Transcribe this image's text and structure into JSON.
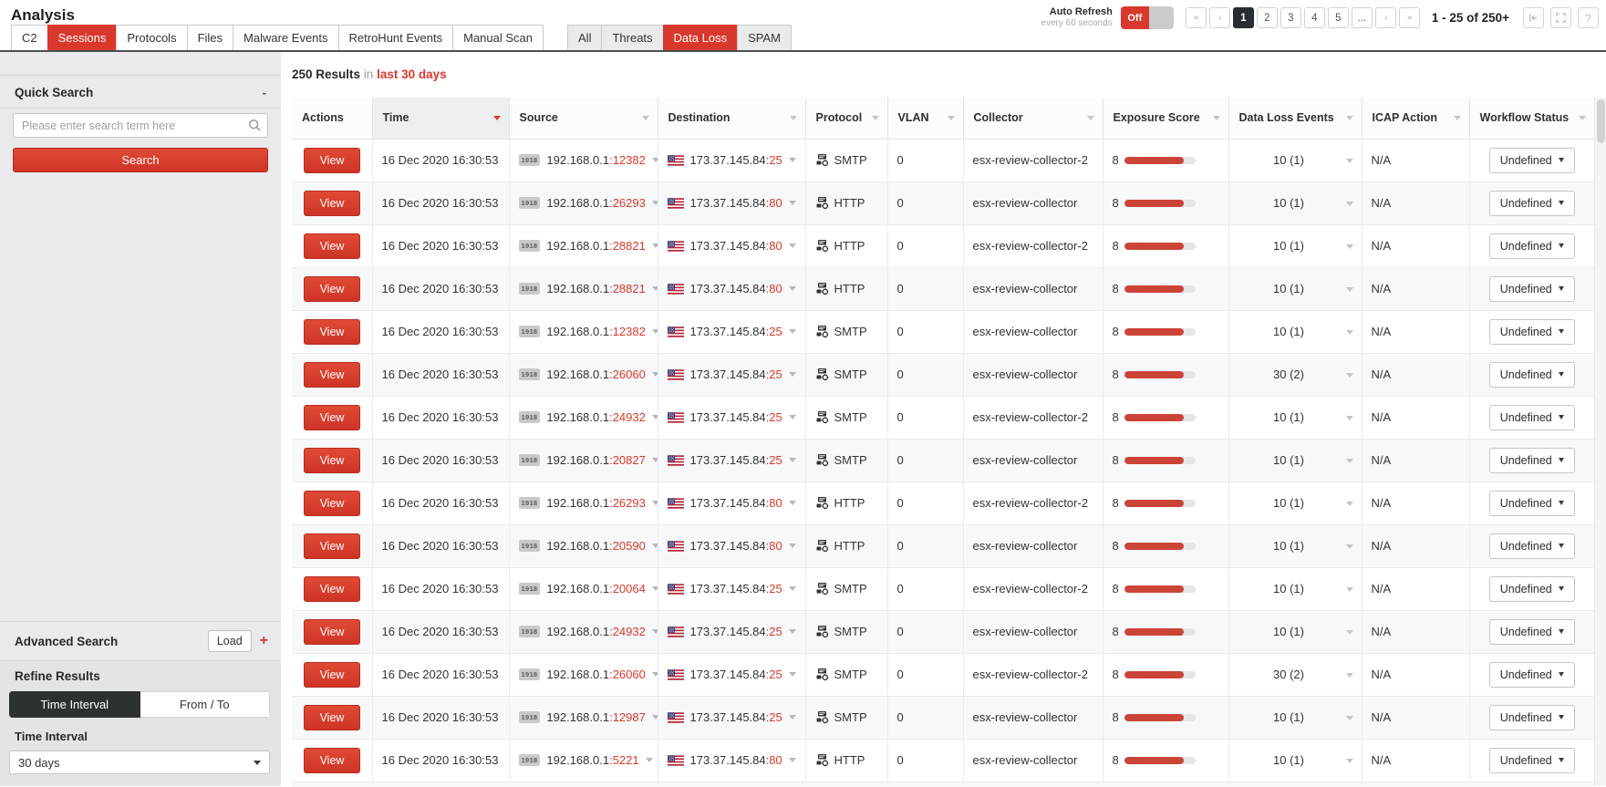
{
  "colors": {
    "accent": "#d8392c",
    "accent_dark": "#b42d1f",
    "sidebar_bg": "#e8eaec",
    "dark_button": "#2c3134",
    "bar_fill": "#cc4437",
    "bar_track": "#e4e5e7"
  },
  "header": {
    "title": "Analysis",
    "primary_tabs": [
      {
        "label": "C2"
      },
      {
        "label": "Sessions",
        "active": true
      },
      {
        "label": "Protocols"
      },
      {
        "label": "Files"
      },
      {
        "label": "Malware Events"
      },
      {
        "label": "RetroHunt Events"
      },
      {
        "label": "Manual Scan"
      }
    ],
    "filter_tabs": [
      {
        "label": "All"
      },
      {
        "label": "Threats"
      },
      {
        "label": "Data Loss",
        "active": true
      },
      {
        "label": "SPAM"
      }
    ],
    "auto_refresh": {
      "label": "Auto Refresh",
      "sublabel": "every 60 seconds",
      "state": "Off"
    },
    "pagination": {
      "first": "«",
      "prev": "‹",
      "next": "›",
      "last": "»",
      "pages": [
        "1",
        "2",
        "3",
        "4",
        "5",
        "..."
      ],
      "active_page": "1",
      "range_label": "1 - 25 of 250+",
      "help": "?"
    }
  },
  "sidebar": {
    "quick_search": {
      "title": "Quick Search",
      "collapse": "-",
      "placeholder": "Please enter search term here",
      "button": "Search"
    },
    "advanced_search": {
      "title": "Advanced Search",
      "load_button": "Load",
      "add_button": "+"
    },
    "refine": {
      "title": "Refine Results",
      "modes": [
        "Time Interval",
        "From / To"
      ],
      "active_mode": "Time Interval",
      "interval_label": "Time Interval",
      "interval_value": "30 days"
    }
  },
  "results": {
    "count": "250 Results",
    "connector": "in",
    "range": "last 30 days"
  },
  "table": {
    "action_label": "View",
    "columns": [
      {
        "label": "Actions",
        "caret": false
      },
      {
        "label": "Time",
        "caret": true,
        "sorted": true
      },
      {
        "label": "Source",
        "caret": true
      },
      {
        "label": "Destination",
        "caret": true
      },
      {
        "label": "Protocol",
        "caret": true
      },
      {
        "label": "VLAN",
        "caret": true
      },
      {
        "label": "Collector",
        "caret": true
      },
      {
        "label": "Exposure Score",
        "caret": true
      },
      {
        "label": "Data Loss Events",
        "caret": true
      },
      {
        "label": "ICAP Action",
        "caret": true
      },
      {
        "label": "Workflow Status",
        "caret": true
      }
    ],
    "rows": [
      {
        "time": "16 Dec 2020 16:30:53",
        "src_badge": "1918",
        "src_ip": "192.168.0.1",
        "src_port": ":12382",
        "dst_ip": "173.37.145.84",
        "dst_port": ":25",
        "protocol": "SMTP",
        "vlan": "0",
        "collector": "esx-review-collector-2",
        "exposure_score": "8",
        "exposure_pct": 84,
        "data_loss": "10 (1)",
        "icap": "N/A",
        "workflow": "Undefined"
      },
      {
        "time": "16 Dec 2020 16:30:53",
        "src_badge": "1918",
        "src_ip": "192.168.0.1",
        "src_port": ":26293",
        "dst_ip": "173.37.145.84",
        "dst_port": ":80",
        "protocol": "HTTP",
        "vlan": "0",
        "collector": "esx-review-collector",
        "exposure_score": "8",
        "exposure_pct": 84,
        "data_loss": "10 (1)",
        "icap": "N/A",
        "workflow": "Undefined"
      },
      {
        "time": "16 Dec 2020 16:30:53",
        "src_badge": "1918",
        "src_ip": "192.168.0.1",
        "src_port": ":28821",
        "dst_ip": "173.37.145.84",
        "dst_port": ":80",
        "protocol": "HTTP",
        "vlan": "0",
        "collector": "esx-review-collector-2",
        "exposure_score": "8",
        "exposure_pct": 84,
        "data_loss": "10 (1)",
        "icap": "N/A",
        "workflow": "Undefined"
      },
      {
        "time": "16 Dec 2020 16:30:53",
        "src_badge": "1918",
        "src_ip": "192.168.0.1",
        "src_port": ":28821",
        "dst_ip": "173.37.145.84",
        "dst_port": ":80",
        "protocol": "HTTP",
        "vlan": "0",
        "collector": "esx-review-collector",
        "exposure_score": "8",
        "exposure_pct": 84,
        "data_loss": "10 (1)",
        "icap": "N/A",
        "workflow": "Undefined"
      },
      {
        "time": "16 Dec 2020 16:30:53",
        "src_badge": "1918",
        "src_ip": "192.168.0.1",
        "src_port": ":12382",
        "dst_ip": "173.37.145.84",
        "dst_port": ":25",
        "protocol": "SMTP",
        "vlan": "0",
        "collector": "esx-review-collector",
        "exposure_score": "8",
        "exposure_pct": 84,
        "data_loss": "10 (1)",
        "icap": "N/A",
        "workflow": "Undefined"
      },
      {
        "time": "16 Dec 2020 16:30:53",
        "src_badge": "1918",
        "src_ip": "192.168.0.1",
        "src_port": ":26060",
        "dst_ip": "173.37.145.84",
        "dst_port": ":25",
        "protocol": "SMTP",
        "vlan": "0",
        "collector": "esx-review-collector",
        "exposure_score": "8",
        "exposure_pct": 84,
        "data_loss": "30 (2)",
        "icap": "N/A",
        "workflow": "Undefined"
      },
      {
        "time": "16 Dec 2020 16:30:53",
        "src_badge": "1918",
        "src_ip": "192.168.0.1",
        "src_port": ":24932",
        "dst_ip": "173.37.145.84",
        "dst_port": ":25",
        "protocol": "SMTP",
        "vlan": "0",
        "collector": "esx-review-collector-2",
        "exposure_score": "8",
        "exposure_pct": 84,
        "data_loss": "10 (1)",
        "icap": "N/A",
        "workflow": "Undefined"
      },
      {
        "time": "16 Dec 2020 16:30:53",
        "src_badge": "1918",
        "src_ip": "192.168.0.1",
        "src_port": ":20827",
        "dst_ip": "173.37.145.84",
        "dst_port": ":25",
        "protocol": "SMTP",
        "vlan": "0",
        "collector": "esx-review-collector",
        "exposure_score": "8",
        "exposure_pct": 84,
        "data_loss": "10 (1)",
        "icap": "N/A",
        "workflow": "Undefined"
      },
      {
        "time": "16 Dec 2020 16:30:53",
        "src_badge": "1918",
        "src_ip": "192.168.0.1",
        "src_port": ":26293",
        "dst_ip": "173.37.145.84",
        "dst_port": ":80",
        "protocol": "HTTP",
        "vlan": "0",
        "collector": "esx-review-collector-2",
        "exposure_score": "8",
        "exposure_pct": 84,
        "data_loss": "10 (1)",
        "icap": "N/A",
        "workflow": "Undefined"
      },
      {
        "time": "16 Dec 2020 16:30:53",
        "src_badge": "1918",
        "src_ip": "192.168.0.1",
        "src_port": ":20590",
        "dst_ip": "173.37.145.84",
        "dst_port": ":80",
        "protocol": "HTTP",
        "vlan": "0",
        "collector": "esx-review-collector",
        "exposure_score": "8",
        "exposure_pct": 84,
        "data_loss": "10 (1)",
        "icap": "N/A",
        "workflow": "Undefined"
      },
      {
        "time": "16 Dec 2020 16:30:53",
        "src_badge": "1918",
        "src_ip": "192.168.0.1",
        "src_port": ":20064",
        "dst_ip": "173.37.145.84",
        "dst_port": ":25",
        "protocol": "SMTP",
        "vlan": "0",
        "collector": "esx-review-collector-2",
        "exposure_score": "8",
        "exposure_pct": 84,
        "data_loss": "10 (1)",
        "icap": "N/A",
        "workflow": "Undefined"
      },
      {
        "time": "16 Dec 2020 16:30:53",
        "src_badge": "1918",
        "src_ip": "192.168.0.1",
        "src_port": ":24932",
        "dst_ip": "173.37.145.84",
        "dst_port": ":25",
        "protocol": "SMTP",
        "vlan": "0",
        "collector": "esx-review-collector",
        "exposure_score": "8",
        "exposure_pct": 84,
        "data_loss": "10 (1)",
        "icap": "N/A",
        "workflow": "Undefined"
      },
      {
        "time": "16 Dec 2020 16:30:53",
        "src_badge": "1918",
        "src_ip": "192.168.0.1",
        "src_port": ":26060",
        "dst_ip": "173.37.145.84",
        "dst_port": ":25",
        "protocol": "SMTP",
        "vlan": "0",
        "collector": "esx-review-collector-2",
        "exposure_score": "8",
        "exposure_pct": 84,
        "data_loss": "30 (2)",
        "icap": "N/A",
        "workflow": "Undefined"
      },
      {
        "time": "16 Dec 2020 16:30:53",
        "src_badge": "1918",
        "src_ip": "192.168.0.1",
        "src_port": ":12987",
        "dst_ip": "173.37.145.84",
        "dst_port": ":25",
        "protocol": "SMTP",
        "vlan": "0",
        "collector": "esx-review-collector",
        "exposure_score": "8",
        "exposure_pct": 84,
        "data_loss": "10 (1)",
        "icap": "N/A",
        "workflow": "Undefined"
      },
      {
        "time": "16 Dec 2020 16:30:53",
        "src_badge": "1918",
        "src_ip": "192.168.0.1",
        "src_port": ":5221",
        "dst_ip": "173.37.145.84",
        "dst_port": ":80",
        "protocol": "HTTP",
        "vlan": "0",
        "collector": "esx-review-collector",
        "exposure_score": "8",
        "exposure_pct": 84,
        "data_loss": "10 (1)",
        "icap": "N/A",
        "workflow": "Undefined"
      }
    ]
  }
}
